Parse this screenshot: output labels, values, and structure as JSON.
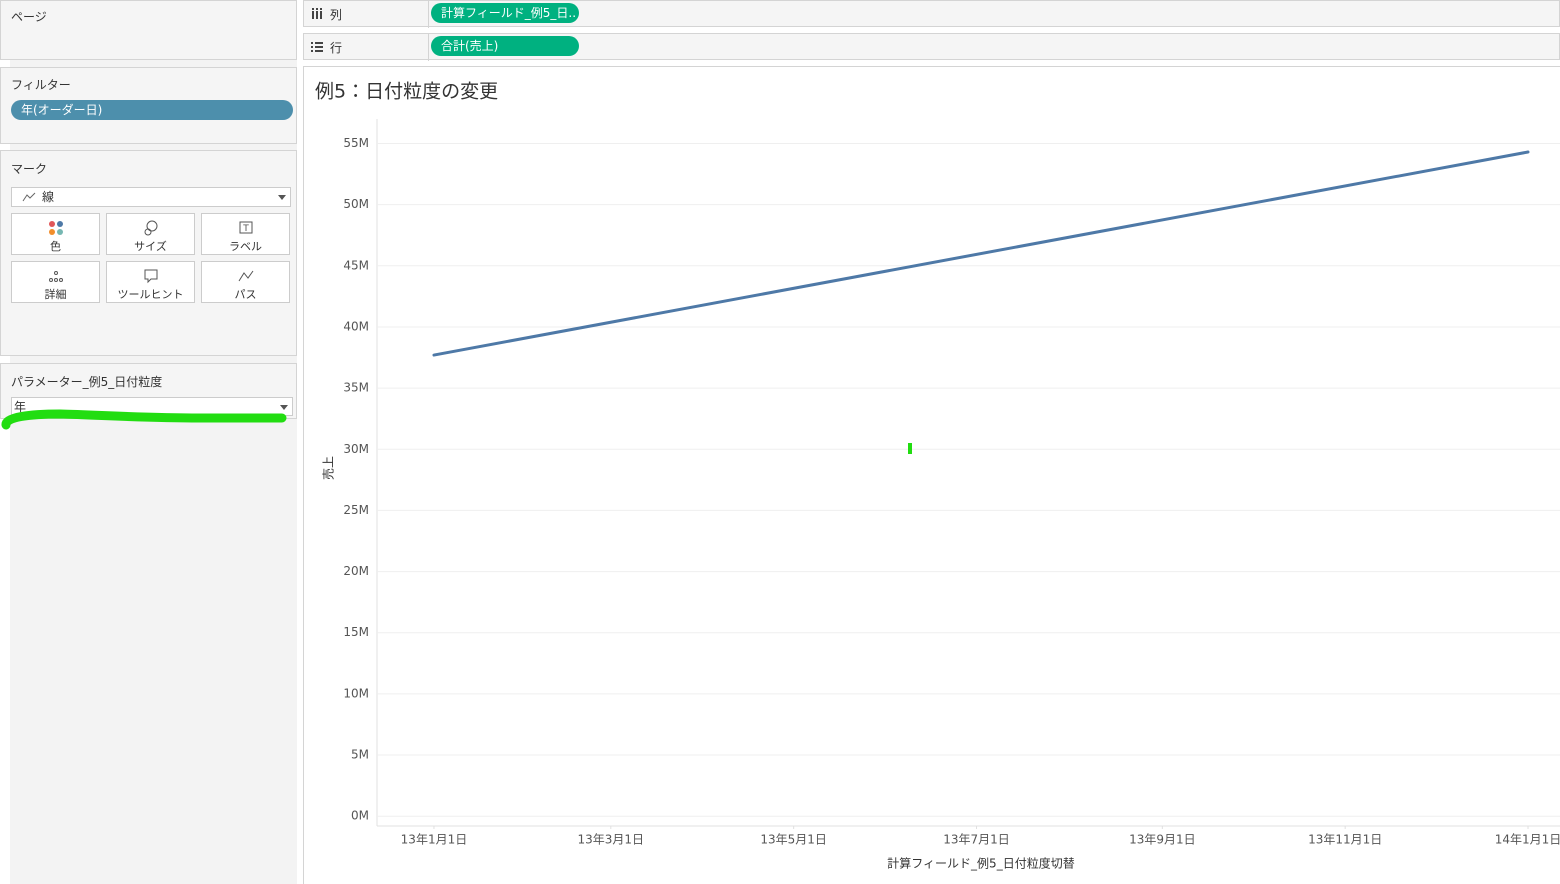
{
  "ui": {
    "pages_label": "ページ",
    "filters_label": "フィルター",
    "filter_pill": "年(オーダー日)",
    "marks_label": "マーク",
    "mark_type": "線",
    "mark_buttons": [
      "色",
      "サイズ",
      "ラベル",
      "詳細",
      "ツールヒント",
      "パス"
    ],
    "parameter_label": "パラメーター_例5_日付粒度",
    "parameter_value": "年",
    "columns_label": "列",
    "columns_pill": "計算フィールド_例5_日..",
    "rows_label": "行",
    "rows_pill": "合計(売上)"
  },
  "chart_data": {
    "type": "line",
    "title": "例5：日付粒度の変更",
    "x_label": "計算フィールド_例5_日付粒度切替",
    "y_label": "売上",
    "x": [
      "2013-01-01",
      "2014-01-01"
    ],
    "values": [
      37700000,
      54300000
    ],
    "color": "#4e79a7",
    "xlim": [
      "2012-12-13",
      "2014-01-12"
    ],
    "xticks": [
      {
        "value": "2013-01-01",
        "label": "13年1月1日"
      },
      {
        "value": "2013-03-01",
        "label": "13年3月1日"
      },
      {
        "value": "2013-05-01",
        "label": "13年5月1日"
      },
      {
        "value": "2013-07-01",
        "label": "13年7月1日"
      },
      {
        "value": "2013-09-01",
        "label": "13年9月1日"
      },
      {
        "value": "2013-11-01",
        "label": "13年11月1日"
      },
      {
        "value": "2014-01-01",
        "label": "14年1月1日"
      }
    ],
    "ylim": [
      -800000,
      57000000
    ],
    "yticks": [
      {
        "value": 0,
        "label": "0M"
      },
      {
        "value": 5000000,
        "label": "5M"
      },
      {
        "value": 10000000,
        "label": "10M"
      },
      {
        "value": 15000000,
        "label": "15M"
      },
      {
        "value": 20000000,
        "label": "20M"
      },
      {
        "value": 25000000,
        "label": "25M"
      },
      {
        "value": 30000000,
        "label": "30M"
      },
      {
        "value": 35000000,
        "label": "35M"
      },
      {
        "value": 40000000,
        "label": "40M"
      },
      {
        "value": 45000000,
        "label": "45M"
      },
      {
        "value": 50000000,
        "label": "50M"
      },
      {
        "value": 55000000,
        "label": "55M"
      }
    ],
    "grid": true
  }
}
